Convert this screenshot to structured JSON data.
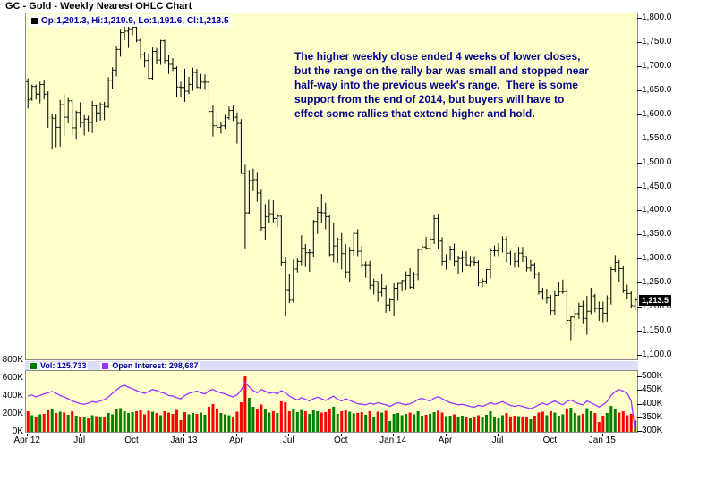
{
  "window": {
    "title": "GC - Gold - Weekly Nearest OHLC Chart"
  },
  "price_panel": {
    "legend_label": "Op:1,201.3, Hi:1,219.9, Lo:1,191.6, Cl:1,213.5",
    "current_price_label": "1,213.5",
    "annotation_lines": [
      "The higher weekly close ended 4 weeks of lower closes,",
      "but the range on the rally bar was small and stopped near",
      "half-way into the previous week's range.  There is some",
      "support from the end of 2014, but buyers will have to",
      "effect some rallies that extend higher and hold."
    ]
  },
  "lower_panel": {
    "vol_legend": "Vol: 125,733",
    "oi_legend": "Open Interest: 298,687"
  },
  "colors": {
    "page_background": "#FFFFFF",
    "panel_background": "#FFFFCC",
    "panel_header_bg": "#DEDEF6",
    "ohlc_bar": "#000000",
    "volume_up": "#008000",
    "volume_down": "#FF0000",
    "open_interest_line": "#9933FF",
    "annotation_text": "#00008B",
    "legend_text": "#000099",
    "axis_text": "#000000",
    "price_tag_bg": "#000000",
    "price_tag_text": "#FFFFFF"
  },
  "chart_data": {
    "type": "ohlc",
    "title": "GC - Gold - Weekly Nearest OHLC Chart",
    "frequency": "weekly",
    "price_axis": {
      "side": "right",
      "ylim": [
        1090,
        1810
      ],
      "ticks": [
        1800,
        1750,
        1700,
        1650,
        1600,
        1550,
        1500,
        1450,
        1400,
        1350,
        1300,
        1250,
        1200,
        1150,
        1100
      ]
    },
    "volume_axis": {
      "left_ticks_k": [
        800,
        600,
        400,
        200,
        0
      ],
      "left_ylim_k": [
        0,
        680
      ],
      "right_ticks_k": [
        500,
        450,
        400,
        350,
        300
      ],
      "right_ylim_k": [
        297,
        520
      ]
    },
    "x_axis": {
      "labels": [
        {
          "text": "Apr 12",
          "index": 0
        },
        {
          "text": "Jul",
          "index": 13
        },
        {
          "text": "Oct",
          "index": 26
        },
        {
          "text": "Jan 13",
          "index": 39
        },
        {
          "text": "Apr",
          "index": 52
        },
        {
          "text": "Jul",
          "index": 65
        },
        {
          "text": "Oct",
          "index": 78
        },
        {
          "text": "Jan 14",
          "index": 91
        },
        {
          "text": "Apr",
          "index": 104
        },
        {
          "text": "Jul",
          "index": 117
        },
        {
          "text": "Oct",
          "index": 130
        },
        {
          "text": "Jan 15",
          "index": 143
        }
      ]
    },
    "series": {
      "ohlc": [
        [
          1668,
          1675,
          1612,
          1630
        ],
        [
          1632,
          1662,
          1628,
          1658
        ],
        [
          1658,
          1662,
          1631,
          1642
        ],
        [
          1642,
          1668,
          1623,
          1662
        ],
        [
          1662,
          1672,
          1631,
          1642
        ],
        [
          1642,
          1648,
          1572,
          1584
        ],
        [
          1584,
          1600,
          1527,
          1592
        ],
        [
          1592,
          1601,
          1532,
          1573
        ],
        [
          1573,
          1630,
          1533,
          1620
        ],
        [
          1620,
          1642,
          1556,
          1594
        ],
        [
          1594,
          1634,
          1581,
          1628
        ],
        [
          1628,
          1631,
          1558,
          1572
        ],
        [
          1572,
          1608,
          1547,
          1604
        ],
        [
          1604,
          1625,
          1573,
          1583
        ],
        [
          1583,
          1598,
          1556,
          1590
        ],
        [
          1590,
          1597,
          1563,
          1583
        ],
        [
          1583,
          1628,
          1561,
          1618
        ],
        [
          1618,
          1619,
          1583,
          1603
        ],
        [
          1603,
          1625,
          1587,
          1620
        ],
        [
          1620,
          1626,
          1588,
          1616
        ],
        [
          1616,
          1677,
          1613,
          1671
        ],
        [
          1671,
          1698,
          1652,
          1692
        ],
        [
          1692,
          1741,
          1679,
          1735
        ],
        [
          1735,
          1778,
          1720,
          1770
        ],
        [
          1770,
          1790,
          1754,
          1773
        ],
        [
          1773,
          1787,
          1738,
          1778
        ],
        [
          1778,
          1796,
          1765,
          1781
        ],
        [
          1781,
          1784,
          1750,
          1754
        ],
        [
          1754,
          1758,
          1716,
          1724
        ],
        [
          1724,
          1730,
          1698,
          1712
        ],
        [
          1712,
          1727,
          1674,
          1675
        ],
        [
          1675,
          1739,
          1672,
          1731
        ],
        [
          1731,
          1738,
          1704,
          1713
        ],
        [
          1713,
          1755,
          1703,
          1753
        ],
        [
          1753,
          1755,
          1705,
          1712
        ],
        [
          1712,
          1723,
          1684,
          1704
        ],
        [
          1704,
          1717,
          1690,
          1696
        ],
        [
          1696,
          1700,
          1636,
          1657
        ],
        [
          1657,
          1668,
          1636,
          1656
        ],
        [
          1656,
          1695,
          1626,
          1648
        ],
        [
          1648,
          1678,
          1642,
          1662
        ],
        [
          1662,
          1697,
          1649,
          1687
        ],
        [
          1687,
          1695,
          1655,
          1656
        ],
        [
          1656,
          1684,
          1654,
          1667
        ],
        [
          1667,
          1683,
          1651,
          1667
        ],
        [
          1667,
          1669,
          1598,
          1606
        ],
        [
          1606,
          1620,
          1554,
          1576
        ],
        [
          1576,
          1604,
          1564,
          1573
        ],
        [
          1573,
          1585,
          1560,
          1576
        ],
        [
          1576,
          1599,
          1570,
          1593
        ],
        [
          1593,
          1616,
          1589,
          1608
        ],
        [
          1608,
          1618,
          1586,
          1594
        ],
        [
          1594,
          1604,
          1539,
          1581
        ],
        [
          1581,
          1590,
          1476,
          1477
        ],
        [
          1477,
          1495,
          1321,
          1395
        ],
        [
          1395,
          1484,
          1393,
          1462
        ],
        [
          1462,
          1487,
          1440,
          1464
        ],
        [
          1464,
          1480,
          1418,
          1436
        ],
        [
          1436,
          1445,
          1358,
          1364
        ],
        [
          1364,
          1413,
          1338,
          1387
        ],
        [
          1387,
          1422,
          1373,
          1393
        ],
        [
          1393,
          1421,
          1373,
          1383
        ],
        [
          1383,
          1394,
          1365,
          1388
        ],
        [
          1388,
          1389,
          1285,
          1292
        ],
        [
          1292,
          1302,
          1180,
          1235
        ],
        [
          1235,
          1267,
          1207,
          1213
        ],
        [
          1213,
          1298,
          1208,
          1278
        ],
        [
          1278,
          1300,
          1271,
          1294
        ],
        [
          1294,
          1348,
          1286,
          1321
        ],
        [
          1321,
          1330,
          1282,
          1312
        ],
        [
          1312,
          1319,
          1272,
          1312
        ],
        [
          1312,
          1380,
          1304,
          1377
        ],
        [
          1377,
          1407,
          1351,
          1396
        ],
        [
          1396,
          1434,
          1373,
          1395
        ],
        [
          1395,
          1416,
          1361,
          1387
        ],
        [
          1387,
          1390,
          1305,
          1308
        ],
        [
          1308,
          1375,
          1292,
          1326
        ],
        [
          1326,
          1344,
          1291,
          1339
        ],
        [
          1339,
          1353,
          1277,
          1310
        ],
        [
          1310,
          1330,
          1259,
          1272
        ],
        [
          1272,
          1324,
          1251,
          1316
        ],
        [
          1316,
          1356,
          1306,
          1352
        ],
        [
          1352,
          1361,
          1305,
          1315
        ],
        [
          1315,
          1326,
          1281,
          1287
        ],
        [
          1287,
          1294,
          1260,
          1287
        ],
        [
          1287,
          1295,
          1236,
          1244
        ],
        [
          1244,
          1258,
          1225,
          1252
        ],
        [
          1252,
          1253,
          1210,
          1229
        ],
        [
          1229,
          1268,
          1221,
          1238
        ],
        [
          1238,
          1244,
          1187,
          1203
        ],
        [
          1203,
          1218,
          1190,
          1214
        ],
        [
          1214,
          1248,
          1181,
          1238
        ],
        [
          1238,
          1249,
          1212,
          1248
        ],
        [
          1248,
          1255,
          1233,
          1254
        ],
        [
          1254,
          1273,
          1235,
          1264
        ],
        [
          1264,
          1280,
          1237,
          1240
        ],
        [
          1240,
          1272,
          1237,
          1267
        ],
        [
          1267,
          1321,
          1255,
          1319
        ],
        [
          1319,
          1332,
          1307,
          1324
        ],
        [
          1324,
          1345,
          1318,
          1321
        ],
        [
          1321,
          1355,
          1315,
          1340
        ],
        [
          1340,
          1392,
          1330,
          1383
        ],
        [
          1383,
          1393,
          1320,
          1336
        ],
        [
          1336,
          1344,
          1286,
          1294
        ],
        [
          1294,
          1309,
          1277,
          1303
        ],
        [
          1303,
          1326,
          1296,
          1318
        ],
        [
          1318,
          1331,
          1284,
          1294
        ],
        [
          1294,
          1306,
          1268,
          1300
        ],
        [
          1300,
          1315,
          1272,
          1302
        ],
        [
          1302,
          1315,
          1285,
          1287
        ],
        [
          1287,
          1305,
          1282,
          1293
        ],
        [
          1293,
          1305,
          1285,
          1292
        ],
        [
          1292,
          1296,
          1242,
          1250
        ],
        [
          1250,
          1259,
          1240,
          1253
        ],
        [
          1253,
          1278,
          1247,
          1277
        ],
        [
          1277,
          1322,
          1258,
          1316
        ],
        [
          1316,
          1327,
          1305,
          1316
        ],
        [
          1316,
          1332,
          1305,
          1320
        ],
        [
          1320,
          1346,
          1312,
          1339
        ],
        [
          1339,
          1346,
          1292,
          1311
        ],
        [
          1311,
          1316,
          1287,
          1303
        ],
        [
          1303,
          1312,
          1281,
          1294
        ],
        [
          1294,
          1324,
          1281,
          1311
        ],
        [
          1311,
          1324,
          1293,
          1304
        ],
        [
          1304,
          1305,
          1273,
          1280
        ],
        [
          1280,
          1297,
          1273,
          1287
        ],
        [
          1287,
          1291,
          1258,
          1267
        ],
        [
          1267,
          1272,
          1225,
          1230
        ],
        [
          1230,
          1239,
          1214,
          1216
        ],
        [
          1216,
          1237,
          1206,
          1219
        ],
        [
          1219,
          1224,
          1183,
          1191
        ],
        [
          1191,
          1234,
          1183,
          1223
        ],
        [
          1223,
          1250,
          1222,
          1231
        ],
        [
          1231,
          1256,
          1226,
          1231
        ],
        [
          1231,
          1239,
          1160,
          1171
        ],
        [
          1171,
          1180,
          1130,
          1178
        ],
        [
          1178,
          1194,
          1145,
          1185
        ],
        [
          1185,
          1208,
          1174,
          1201
        ],
        [
          1201,
          1212,
          1165,
          1175
        ],
        [
          1175,
          1222,
          1141,
          1190
        ],
        [
          1190,
          1239,
          1184,
          1222
        ],
        [
          1222,
          1226,
          1188,
          1196
        ],
        [
          1196,
          1210,
          1170,
          1195
        ],
        [
          1195,
          1210,
          1167,
          1186
        ],
        [
          1186,
          1223,
          1168,
          1216
        ],
        [
          1216,
          1282,
          1204,
          1277
        ],
        [
          1277,
          1307,
          1272,
          1292
        ],
        [
          1292,
          1297,
          1251,
          1279
        ],
        [
          1279,
          1285,
          1228,
          1234
        ],
        [
          1234,
          1245,
          1216,
          1227
        ],
        [
          1227,
          1232,
          1197,
          1202
        ],
        [
          1201.3,
          1219.9,
          1191.6,
          1213.5
        ]
      ],
      "volume_k": [
        230,
        185,
        170,
        195,
        200,
        240,
        255,
        210,
        225,
        215,
        190,
        230,
        180,
        170,
        160,
        150,
        185,
        175,
        165,
        160,
        210,
        195,
        250,
        265,
        230,
        210,
        220,
        230,
        240,
        195,
        235,
        225,
        210,
        185,
        230,
        215,
        200,
        245,
        130,
        220,
        195,
        210,
        200,
        215,
        190,
        280,
        310,
        250,
        210,
        195,
        185,
        170,
        225,
        330,
        620,
        380,
        280,
        260,
        305,
        250,
        215,
        230,
        210,
        340,
        330,
        230,
        260,
        220,
        245,
        230,
        200,
        240,
        230,
        215,
        220,
        260,
        280,
        200,
        230,
        240,
        225,
        205,
        210,
        220,
        190,
        230,
        170,
        225,
        215,
        235,
        120,
        200,
        210,
        185,
        200,
        215,
        195,
        230,
        180,
        190,
        200,
        220,
        235,
        215,
        175,
        180,
        195,
        170,
        180,
        165,
        150,
        160,
        185,
        170,
        190,
        230,
        160,
        150,
        185,
        210,
        170,
        180,
        175,
        160,
        170,
        140,
        180,
        215,
        225,
        185,
        230,
        215,
        180,
        195,
        260,
        270,
        210,
        185,
        200,
        265,
        230,
        210,
        110,
        180,
        210,
        290,
        250,
        215,
        230,
        185,
        200,
        126
      ],
      "open_interest_k": [
        428,
        432,
        425,
        430,
        436,
        440,
        445,
        438,
        430,
        425,
        418,
        410,
        405,
        400,
        398,
        402,
        408,
        405,
        410,
        415,
        425,
        438,
        450,
        462,
        468,
        460,
        455,
        448,
        442,
        438,
        445,
        452,
        448,
        442,
        438,
        430,
        428,
        422,
        418,
        430,
        438,
        442,
        446,
        440,
        436,
        448,
        452,
        445,
        440,
        436,
        430,
        425,
        432,
        450,
        478,
        462,
        448,
        440,
        452,
        446,
        438,
        442,
        436,
        448,
        440,
        428,
        420,
        414,
        422,
        416,
        410,
        418,
        424,
        418,
        412,
        420,
        428,
        416,
        410,
        418,
        412,
        406,
        400,
        398,
        396,
        402,
        398,
        404,
        400,
        396,
        390,
        398,
        404,
        400,
        396,
        400,
        406,
        416,
        420,
        414,
        410,
        420,
        426,
        418,
        410,
        404,
        400,
        396,
        398,
        394,
        390,
        388,
        394,
        390,
        396,
        404,
        398,
        402,
        408,
        400,
        394,
        390,
        394,
        390,
        386,
        382,
        388,
        396,
        402,
        396,
        404,
        410,
        402,
        396,
        408,
        414,
        406,
        400,
        396,
        410,
        404,
        396,
        388,
        396,
        408,
        430,
        444,
        452,
        446,
        438,
        410,
        299
      ]
    },
    "last_values": {
      "open": 1201.3,
      "high": 1219.9,
      "low": 1191.6,
      "close": 1213.5,
      "volume": 125733,
      "open_interest": 298687
    }
  }
}
